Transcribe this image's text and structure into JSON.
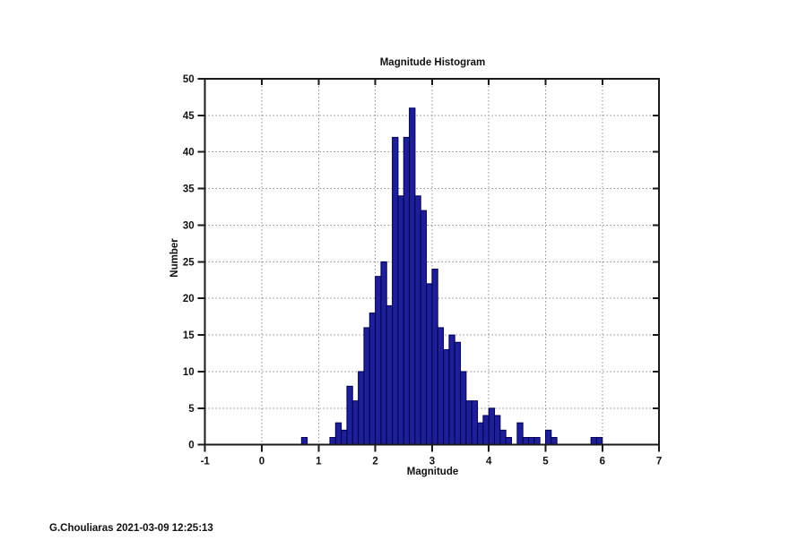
{
  "footer": "G.Chouliaras 2021-03-09 12:25:13",
  "chart_data": {
    "type": "bar",
    "title": "Magnitude Histogram",
    "xlabel": "Magnitude",
    "ylabel": "Number",
    "xlim": [
      -1,
      7
    ],
    "ylim": [
      0,
      50
    ],
    "x_ticks": [
      -1,
      0,
      1,
      2,
      3,
      4,
      5,
      6,
      7
    ],
    "y_ticks": [
      0,
      5,
      10,
      15,
      20,
      25,
      30,
      35,
      40,
      45,
      50
    ],
    "grid": "dotted",
    "legend": "none",
    "bin_width": 0.1,
    "bars": [
      [
        0.7,
        1
      ],
      [
        1.2,
        1
      ],
      [
        1.3,
        3
      ],
      [
        1.4,
        2
      ],
      [
        1.5,
        8
      ],
      [
        1.6,
        6
      ],
      [
        1.7,
        10
      ],
      [
        1.8,
        16
      ],
      [
        1.9,
        18
      ],
      [
        2.0,
        23
      ],
      [
        2.1,
        25
      ],
      [
        2.2,
        19
      ],
      [
        2.3,
        42
      ],
      [
        2.4,
        34
      ],
      [
        2.5,
        42
      ],
      [
        2.6,
        46
      ],
      [
        2.7,
        34
      ],
      [
        2.8,
        32
      ],
      [
        2.9,
        22
      ],
      [
        3.0,
        24
      ],
      [
        3.1,
        16
      ],
      [
        3.2,
        13
      ],
      [
        3.3,
        15
      ],
      [
        3.4,
        14
      ],
      [
        3.5,
        10
      ],
      [
        3.6,
        6
      ],
      [
        3.7,
        6
      ],
      [
        3.8,
        3
      ],
      [
        3.9,
        4
      ],
      [
        4.0,
        5
      ],
      [
        4.1,
        4
      ],
      [
        4.2,
        2
      ],
      [
        4.3,
        1
      ],
      [
        4.5,
        3
      ],
      [
        4.6,
        1
      ],
      [
        4.7,
        1
      ],
      [
        4.8,
        1
      ],
      [
        5.0,
        2
      ],
      [
        5.1,
        1
      ],
      [
        5.8,
        1
      ],
      [
        5.9,
        1
      ]
    ],
    "colors": {
      "bar_fill": "#1e1e96",
      "bar_border": "#000058",
      "grid_line": "#8f8f8f",
      "axis_line": "#1a1a1a",
      "text": "#111111"
    }
  }
}
